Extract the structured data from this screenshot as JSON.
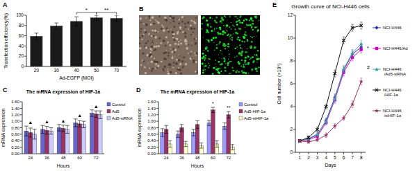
{
  "panel_labels": [
    "A",
    "B",
    "C",
    "D",
    "E"
  ],
  "chart_data": [
    {
      "type": "bar",
      "x_label": "Ad-EGFP (MOI)",
      "y_label": "Transfection efficiency(%)",
      "categories": [
        "20",
        "30",
        "40",
        "50",
        "70"
      ],
      "values": [
        59,
        79,
        88,
        95,
        94
      ],
      "errors": [
        6,
        6,
        9,
        5,
        6
      ],
      "color": "#1a1a1a",
      "ylim": [
        0,
        100
      ],
      "yticks": [
        0,
        20,
        40,
        60,
        80,
        100
      ],
      "grid": false,
      "annotations": [
        "*",
        "**"
      ]
    },
    {
      "type": "bar",
      "title": "The mRNA expression of HIF-1a",
      "x_label": "Hours",
      "y_label": "mRNA expression",
      "categories": [
        "24",
        "36",
        "48",
        "60",
        "72"
      ],
      "series": [
        {
          "name": "Control",
          "color": "#6666cc",
          "values": [
            0.7,
            0.75,
            0.8,
            0.95,
            1.25
          ],
          "errors": [
            0.15,
            0.12,
            0.1,
            0.12,
            0.1
          ]
        },
        {
          "name": "Ad5",
          "color": "#993366",
          "values": [
            0.65,
            0.72,
            0.78,
            0.92,
            1.22
          ],
          "errors": [
            0.14,
            0.12,
            0.1,
            0.1,
            0.1
          ]
        },
        {
          "name": "Ad5-siRNA",
          "color": "#ccccff",
          "values": [
            0.6,
            0.7,
            0.75,
            0.9,
            1.2
          ],
          "errors": [
            0.15,
            0.1,
            0.12,
            0.1,
            0.12
          ]
        }
      ],
      "ylim": [
        0,
        1.6
      ],
      "yticks": [
        {
          "value": 0,
          "label": "0.00"
        },
        {
          "value": 0.2,
          "label": "0.20"
        },
        {
          "value": 0.4,
          "label": "0.40"
        },
        {
          "value": 0.6,
          "label": "0.60"
        },
        {
          "value": 0.8,
          "label": "0.80"
        },
        {
          "value": 1,
          "label": "1.00"
        },
        {
          "value": 1.2,
          "label": "1.20"
        },
        {
          "value": 1.4,
          "label": "1.40"
        },
        {
          "value": 1.6,
          "label": "1.60"
        }
      ],
      "legend": "right",
      "grid": false,
      "annotations": [
        "▲",
        "▲",
        "▲",
        "▲",
        "▲"
      ]
    },
    {
      "type": "bar",
      "title": "The mRNA expression of HIF-1a",
      "x_label": "Hours",
      "y_label": "mRNA expression",
      "categories": [
        "24",
        "36",
        "48",
        "60",
        "72"
      ],
      "series": [
        {
          "name": "Control",
          "color": "#9999ff",
          "values": [
            0.65,
            0.6,
            0.65,
            0.95,
            0.85
          ],
          "errors": [
            0.12,
            0.1,
            0.1,
            0.08,
            0.1
          ]
        },
        {
          "name": "Ad5-HIF-1a",
          "color": "#993366",
          "values": [
            0.75,
            0.8,
            0.9,
            1.35,
            1.2
          ],
          "errors": [
            0.12,
            0.1,
            0.12,
            0.08,
            0.1
          ]
        },
        {
          "name": "Ad5-siHIF-1a",
          "color": "#ffffcc",
          "values": [
            0.3,
            0.3,
            0.25,
            0.3,
            0.2
          ],
          "errors": [
            0.1,
            0.08,
            0.08,
            0.1,
            0.08
          ]
        }
      ],
      "ylim": [
        0,
        1.6
      ],
      "yticks": [
        {
          "value": 0,
          "label": "0.00"
        },
        {
          "value": 0.2,
          "label": "0.20"
        },
        {
          "value": 0.4,
          "label": "0.40"
        },
        {
          "value": 0.6,
          "label": "0.60"
        },
        {
          "value": 0.8,
          "label": "0.80"
        },
        {
          "value": 1,
          "label": "1.00"
        },
        {
          "value": 1.2,
          "label": "1.20"
        },
        {
          "value": 1.4,
          "label": "1.40"
        },
        {
          "value": 1.6,
          "label": "1.60"
        }
      ],
      "legend": "right",
      "grid": false,
      "annotations": [
        "*",
        "**"
      ]
    },
    {
      "type": "line",
      "title": "Growth curve of NCI-H446 cells",
      "x_label": "Days",
      "y_label": "Cell number (×10⁵)",
      "x": [
        1,
        2,
        3,
        4,
        5,
        6,
        7,
        8
      ],
      "xlim": [
        0.5,
        8.5
      ],
      "xticks": [
        1,
        2,
        3,
        4,
        5,
        6,
        7,
        8
      ],
      "ylim": [
        0,
        12
      ],
      "yticks": [
        0,
        2,
        4,
        6,
        8,
        10,
        12
      ],
      "series": [
        {
          "name": "NCI-H446",
          "color": "#2b2bb0",
          "marker": "diamond",
          "values": [
            1,
            1.2,
            1.5,
            2.8,
            4.8,
            7.2,
            8.6,
            9.2
          ],
          "errors": [
            0.1,
            0.15,
            0.2,
            0.2,
            0.3,
            0.3,
            0.3,
            0.3
          ]
        },
        {
          "name": "NCI-H446/Ad",
          "color": "#cc00cc",
          "marker": "square",
          "values": [
            1,
            1.1,
            1.4,
            2.6,
            4.6,
            7.0,
            8.3,
            9.0
          ],
          "errors": [
            0.1,
            0.15,
            0.2,
            0.2,
            0.3,
            0.3,
            0.3,
            0.3
          ]
        },
        {
          "name": "NCI-H446 /Ad5-siRNA",
          "color": "#3fa0a0",
          "marker": "triangle",
          "values": [
            1,
            1.2,
            1.6,
            2.7,
            4.7,
            7.3,
            8.7,
            9.5
          ],
          "errors": [
            0.1,
            0.15,
            0.2,
            0.2,
            0.3,
            0.3,
            0.3,
            0.3
          ]
        },
        {
          "name": "NCI-H446 /HIF-1a",
          "color": "#111111",
          "marker": "x",
          "values": [
            1,
            1.3,
            2.0,
            4.0,
            6.9,
            9.8,
            10.9,
            11.1
          ],
          "errors": [
            0.1,
            0.15,
            0.2,
            0.2,
            0.3,
            0.3,
            0.3,
            0.3
          ]
        },
        {
          "name": "NCI-H446 /siHIF-1α",
          "color": "#993366",
          "marker": "star",
          "values": [
            1,
            0.9,
            1.1,
            1.5,
            2.3,
            3.0,
            4.2,
            6.2
          ],
          "errors": [
            0.1,
            0.1,
            0.15,
            0.2,
            0.2,
            0.2,
            0.3,
            0.3
          ]
        }
      ],
      "legend": "right",
      "grid": false,
      "annotations": [
        "*",
        "#"
      ]
    }
  ]
}
